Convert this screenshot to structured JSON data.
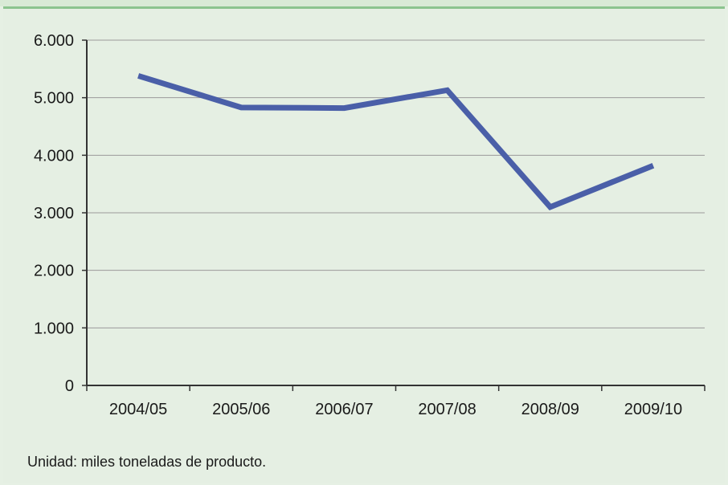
{
  "chart_data": {
    "type": "line",
    "categories": [
      "2004/05",
      "2005/06",
      "2006/07",
      "2007/08",
      "2008/09",
      "2009/10"
    ],
    "series": [
      {
        "values": [
          5380,
          4830,
          4820,
          5130,
          3100,
          3820
        ]
      }
    ],
    "ylim": [
      0,
      6000
    ],
    "yticks": [
      0,
      1000,
      2000,
      3000,
      4000,
      5000,
      6000
    ],
    "ytick_labels": [
      "0",
      "1.000",
      "2.000",
      "3.000",
      "4.000",
      "5.000",
      "6.000"
    ],
    "grid": true,
    "line_color": "#4a5fa8"
  },
  "note": "Unidad: miles toneladas de producto."
}
